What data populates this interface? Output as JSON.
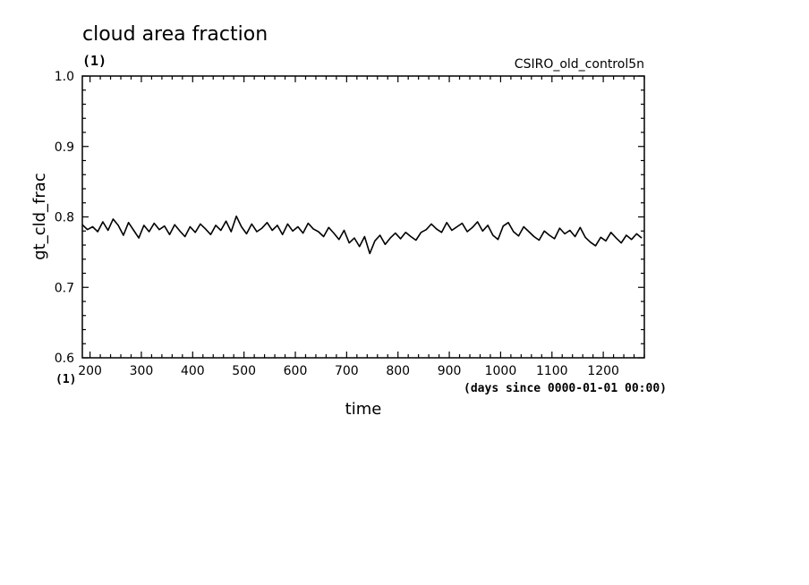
{
  "chart_data": {
    "type": "line",
    "title": "cloud area fraction",
    "title_units": "(1)",
    "source_label": "CSIRO_old_control5n",
    "xlabel": "time",
    "xlabel_units": "(days since 0000-01-01 00:00)",
    "ylabel": "gt_cld_frac",
    "ylabel_units": "(1)",
    "xlim": [
      185,
      1280
    ],
    "ylim": [
      0.6,
      1.0
    ],
    "x_ticks": [
      200,
      300,
      400,
      500,
      600,
      700,
      800,
      900,
      1000,
      1100,
      1200
    ],
    "y_ticks": [
      0.6,
      0.7,
      0.8,
      0.9,
      1.0
    ],
    "x_tick_labels": [
      "200",
      "300",
      "400",
      "500",
      "600",
      "700",
      "800",
      "900",
      "1000",
      "1100",
      "1200"
    ],
    "y_tick_labels": [
      "0.6",
      "0.7",
      "0.8",
      "0.9",
      "1.0"
    ],
    "grid": false,
    "series": [
      {
        "color": "#000000",
        "x": [
          185,
          195,
          205,
          215,
          225,
          235,
          245,
          255,
          265,
          275,
          285,
          295,
          305,
          315,
          325,
          335,
          345,
          355,
          365,
          375,
          385,
          395,
          405,
          415,
          425,
          435,
          445,
          455,
          465,
          475,
          485,
          495,
          505,
          515,
          525,
          535,
          545,
          555,
          565,
          575,
          585,
          595,
          605,
          615,
          625,
          635,
          645,
          655,
          665,
          675,
          685,
          695,
          705,
          715,
          725,
          735,
          745,
          755,
          765,
          775,
          785,
          795,
          805,
          815,
          825,
          835,
          845,
          855,
          865,
          875,
          885,
          895,
          905,
          915,
          925,
          935,
          945,
          955,
          965,
          975,
          985,
          995,
          1005,
          1015,
          1025,
          1035,
          1045,
          1055,
          1065,
          1075,
          1085,
          1095,
          1105,
          1115,
          1125,
          1135,
          1145,
          1155,
          1165,
          1175,
          1185,
          1195,
          1205,
          1215,
          1225,
          1235,
          1245,
          1255,
          1265,
          1275
        ],
        "y": [
          0.789,
          0.782,
          0.786,
          0.779,
          0.793,
          0.781,
          0.797,
          0.788,
          0.774,
          0.792,
          0.781,
          0.77,
          0.788,
          0.779,
          0.791,
          0.782,
          0.787,
          0.775,
          0.789,
          0.78,
          0.772,
          0.786,
          0.778,
          0.79,
          0.783,
          0.775,
          0.788,
          0.781,
          0.794,
          0.779,
          0.801,
          0.786,
          0.776,
          0.79,
          0.779,
          0.784,
          0.792,
          0.781,
          0.788,
          0.775,
          0.79,
          0.78,
          0.786,
          0.777,
          0.791,
          0.783,
          0.779,
          0.772,
          0.785,
          0.777,
          0.768,
          0.781,
          0.763,
          0.77,
          0.758,
          0.772,
          0.748,
          0.766,
          0.774,
          0.761,
          0.77,
          0.777,
          0.769,
          0.778,
          0.772,
          0.767,
          0.778,
          0.782,
          0.79,
          0.783,
          0.778,
          0.792,
          0.781,
          0.786,
          0.791,
          0.779,
          0.785,
          0.793,
          0.78,
          0.788,
          0.774,
          0.768,
          0.787,
          0.792,
          0.779,
          0.773,
          0.786,
          0.779,
          0.772,
          0.767,
          0.78,
          0.774,
          0.769,
          0.784,
          0.776,
          0.781,
          0.772,
          0.785,
          0.771,
          0.764,
          0.759,
          0.771,
          0.766,
          0.778,
          0.77,
          0.763,
          0.774,
          0.768,
          0.776,
          0.77
        ]
      }
    ]
  }
}
